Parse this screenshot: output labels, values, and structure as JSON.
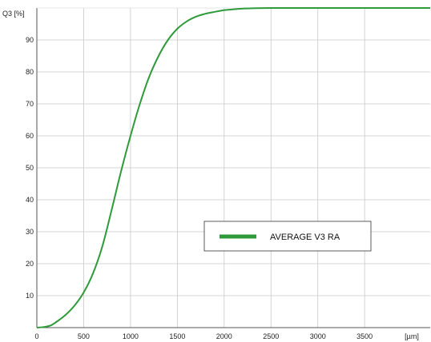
{
  "chart_data": {
    "type": "line",
    "ylabel": "Q3 [%]",
    "xunit": "[µm]",
    "xlim": [
      0,
      4200
    ],
    "ylim": [
      0,
      100
    ],
    "x_ticks": [
      "0",
      "500",
      "1000",
      "1500",
      "2000",
      "2500",
      "3000",
      "3500",
      "[µm]"
    ],
    "y_ticks": [
      "10",
      "20",
      "30",
      "40",
      "50",
      "60",
      "70",
      "80",
      "90"
    ],
    "grid": true,
    "legend_position": "center-right",
    "series": [
      {
        "name": "AVERAGE V3 RA",
        "color": "#2e9a3a",
        "x": [
          0,
          80,
          150,
          200,
          300,
          400,
          500,
          600,
          700,
          800,
          900,
          1000,
          1100,
          1200,
          1300,
          1400,
          1500,
          1600,
          1700,
          1800,
          1900,
          2000,
          2100,
          2200,
          2300,
          2500,
          3000,
          3500,
          4200
        ],
        "y": [
          0,
          0.2,
          0.7,
          1.6,
          3.8,
          6.8,
          11.0,
          17.0,
          25.5,
          37.0,
          49.0,
          60.0,
          70.0,
          78.5,
          85.0,
          90.0,
          93.5,
          95.8,
          97.3,
          98.2,
          98.8,
          99.3,
          99.6,
          99.8,
          99.9,
          100,
          100,
          100,
          100
        ]
      }
    ]
  }
}
